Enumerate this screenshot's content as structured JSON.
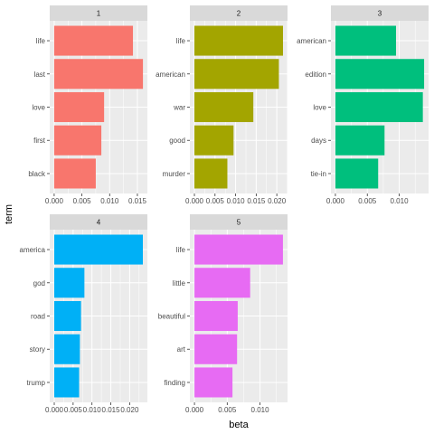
{
  "chart_data": {
    "type": "bar",
    "orientation": "horizontal",
    "xlabel": "beta",
    "ylabel": "term",
    "grid": true,
    "panels": [
      {
        "label": "1",
        "color": "#F8766D",
        "categories": [
          "life",
          "last",
          "love",
          "first",
          "black"
        ],
        "values": [
          0.0142,
          0.016,
          0.009,
          0.0085,
          0.0075
        ],
        "xlim": [
          -0.0008,
          0.0168
        ],
        "xticks": [
          0.0,
          0.005,
          0.01,
          0.015
        ],
        "xtick_labels": [
          "0.000",
          "0.005",
          "0.010",
          "0.015"
        ]
      },
      {
        "label": "2",
        "color": "#A3A500",
        "categories": [
          "life",
          "american",
          "war",
          "good",
          "murder"
        ],
        "values": [
          0.0215,
          0.0205,
          0.0143,
          0.0095,
          0.008
        ],
        "xlim": [
          -0.0011,
          0.0226
        ],
        "xticks": [
          0.0,
          0.005,
          0.01,
          0.015,
          0.02
        ],
        "xtick_labels": [
          "0.000",
          "0.005",
          "0.010",
          "0.015",
          "0.020"
        ]
      },
      {
        "label": "3",
        "color": "#00BF7D",
        "categories": [
          "american",
          "edition",
          "love",
          "days",
          "tie-in"
        ],
        "values": [
          0.0095,
          0.0139,
          0.0137,
          0.0077,
          0.0067
        ],
        "xlim": [
          -0.0007,
          0.0146
        ],
        "xticks": [
          0.0,
          0.005,
          0.01
        ],
        "xtick_labels": [
          "0.000",
          "0.005",
          "0.010"
        ]
      },
      {
        "label": "4",
        "color": "#00B0F6",
        "categories": [
          "america",
          "god",
          "road",
          "story",
          "trump"
        ],
        "values": [
          0.0235,
          0.008,
          0.0071,
          0.0068,
          0.0066
        ],
        "xlim": [
          -0.0012,
          0.0247
        ],
        "xticks": [
          0.0,
          0.005,
          0.01,
          0.015,
          0.02
        ],
        "xtick_labels": [
          "0.000",
          "0.005",
          "0.010",
          "0.015",
          "0.020"
        ]
      },
      {
        "label": "5",
        "color": "#E76BF3",
        "categories": [
          "life",
          "little",
          "beautiful",
          "art",
          "finding"
        ],
        "values": [
          0.0135,
          0.0085,
          0.0066,
          0.0065,
          0.0058
        ],
        "xlim": [
          -0.0007,
          0.0142
        ],
        "xticks": [
          0.0,
          0.005,
          0.01
        ],
        "xtick_labels": [
          "0.000",
          "0.005",
          "0.010"
        ]
      }
    ]
  }
}
